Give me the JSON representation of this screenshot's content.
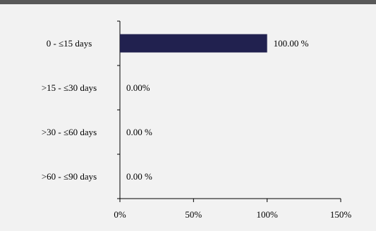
{
  "chart_data": {
    "type": "bar",
    "orientation": "horizontal",
    "categories": [
      "0 - ≤15 days",
      ">15  - ≤30  days",
      ">30  - ≤60 days",
      ">60  - ≤90 days"
    ],
    "values": [
      100,
      0,
      0,
      0
    ],
    "data_labels": [
      "100.00  %",
      "0.00%",
      "0.00 %",
      "0.00 %"
    ],
    "xlim": [
      0,
      150
    ],
    "xticks": [
      0,
      50,
      100,
      150
    ],
    "xtick_labels": [
      "0%",
      "50%",
      "100%",
      "150%"
    ],
    "grid": false,
    "colors": {
      "bar": "#21214f",
      "background": "#f2f2f2",
      "topbar": "#595959",
      "axis": "#000000"
    }
  }
}
